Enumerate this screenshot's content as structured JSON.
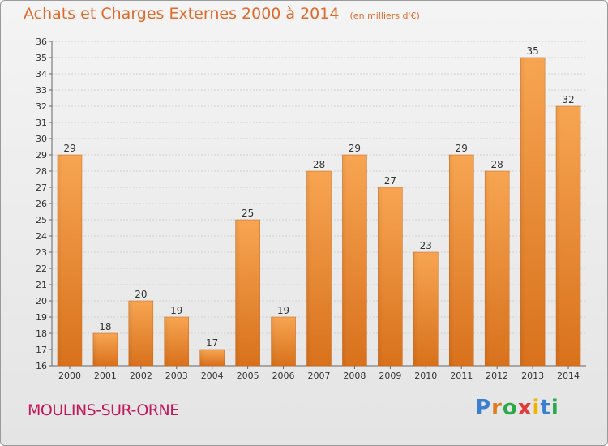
{
  "header": {
    "title": "Achats et Charges Externes 2000 à 2014",
    "subtitle": "(en milliers d'€)"
  },
  "footer": {
    "town": "MOULINS-SUR-ORNE",
    "logo_text": "Proxiti"
  },
  "colors": {
    "title": "#e0692a",
    "town": "#c2185b",
    "bar_light": "#f7a552",
    "bar_dark": "#d8711c",
    "logo": [
      "#3a7fd0",
      "#e07b1f",
      "#2aa84a",
      "#e03a3a",
      "#f0b400",
      "#3a7fd0",
      "#2aa84a"
    ]
  },
  "chart_data": {
    "type": "bar",
    "categories": [
      "2000",
      "2001",
      "2002",
      "2003",
      "2004",
      "2005",
      "2006",
      "2007",
      "2008",
      "2009",
      "2010",
      "2011",
      "2012",
      "2013",
      "2014"
    ],
    "values": [
      29,
      18,
      20,
      19,
      17,
      25,
      19,
      28,
      29,
      27,
      23,
      29,
      28,
      35,
      32
    ],
    "title": "Achats et Charges Externes 2000 à 2014",
    "ylim": [
      16,
      36
    ],
    "yticks": [
      16,
      17,
      18,
      19,
      20,
      21,
      22,
      23,
      24,
      25,
      26,
      27,
      28,
      29,
      30,
      31,
      32,
      33,
      34,
      35,
      36
    ],
    "grid": true
  }
}
